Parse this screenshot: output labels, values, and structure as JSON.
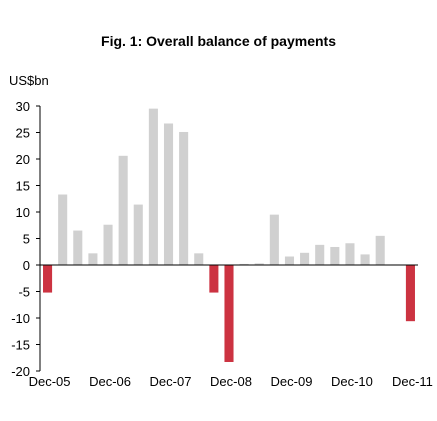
{
  "chart_data": {
    "type": "bar",
    "title": "Fig. 1: Overall balance of payments",
    "ylabel": "US$bn",
    "xlabel": "",
    "ylim": [
      -20,
      30
    ],
    "yticks": [
      30,
      25,
      20,
      15,
      10,
      5,
      0,
      -5,
      -10,
      -15,
      -20
    ],
    "xtick_labels": [
      "Dec-05",
      "Dec-06",
      "Dec-07",
      "Dec-08",
      "Dec-09",
      "Dec-10",
      "Dec-11"
    ],
    "grid": false,
    "legend": "none",
    "values": [
      -5.2,
      13.3,
      6.5,
      2.2,
      7.6,
      20.6,
      11.4,
      29.5,
      26.7,
      25.1,
      2.2,
      -5.2,
      -18.3,
      0.2,
      0.3,
      9.5,
      1.6,
      2.3,
      3.8,
      3.4,
      4.1,
      2.0,
      5.5,
      0.1,
      -10.6
    ],
    "colors": {
      "positive": "#d0d0d0",
      "negative": "#cc3341",
      "axis": "#000000"
    }
  }
}
